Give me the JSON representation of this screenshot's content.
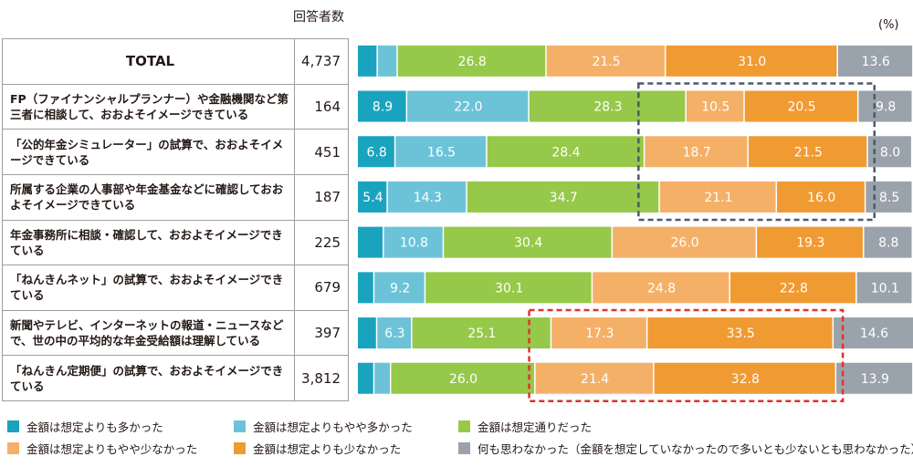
{
  "respondents_header": "回答者数",
  "unit_label": "(%)",
  "colors": [
    "#1aa3be",
    "#6cc3d8",
    "#96c84a",
    "#f5b068",
    "#f09a32",
    "#9aa3ab"
  ],
  "highlight_colors": {
    "blue": "#4a5a6e",
    "red": "#e0322c"
  },
  "chart_data": {
    "type": "stacked_bar_horizontal",
    "unit": "%",
    "xlim": [
      0,
      100
    ],
    "series": [
      {
        "name": "金額は想定よりも多かった"
      },
      {
        "name": "金額は想定よりもやや多かった"
      },
      {
        "name": "金額は想定通りだった"
      },
      {
        "name": "金額は想定よりもやや少なかった"
      },
      {
        "name": "金額は想定よりも少なかった"
      },
      {
        "name": "何も思わなかった（金額を想定していなかったので多いとも少ないとも思わなかった）"
      }
    ],
    "rows": [
      {
        "label": "TOTAL",
        "respondents": "4,737",
        "values": [
          3.6,
          3.6,
          26.8,
          21.5,
          31.0,
          13.6
        ],
        "labels": [
          "",
          "",
          "26.8",
          "21.5",
          "31.0",
          "13.6"
        ]
      },
      {
        "label": "FP（ファイナンシャルプランナー）や金融機関など第三者に相談して、おおよそイメージできている",
        "respondents": "164",
        "values": [
          8.9,
          22.0,
          28.3,
          10.5,
          20.5,
          9.8
        ],
        "labels": [
          "8.9",
          "22.0",
          "28.3",
          "10.5",
          "20.5",
          "9.8"
        ]
      },
      {
        "label": "「公的年金シミュレーター」の試算で、おおよそイメージできている",
        "respondents": "451",
        "values": [
          6.8,
          16.5,
          28.4,
          18.7,
          21.5,
          8.0
        ],
        "labels": [
          "6.8",
          "16.5",
          "28.4",
          "18.7",
          "21.5",
          "8.0"
        ]
      },
      {
        "label": "所属する企業の人事部や年金基金などに確認しておおよそイメージできている",
        "respondents": "187",
        "values": [
          5.4,
          14.3,
          34.7,
          21.1,
          16.0,
          8.5
        ],
        "labels": [
          "5.4",
          "14.3",
          "34.7",
          "21.1",
          "16.0",
          "8.5"
        ]
      },
      {
        "label": "年金事務所に相談・確認して、おおよそイメージできている",
        "respondents": "225",
        "values": [
          4.7,
          10.8,
          30.4,
          26.0,
          19.3,
          8.8
        ],
        "labels": [
          "",
          "10.8",
          "30.4",
          "26.0",
          "19.3",
          "8.8"
        ]
      },
      {
        "label": "「ねんきんネット」の試算で、おおよそイメージできている",
        "respondents": "679",
        "values": [
          3.0,
          9.2,
          30.1,
          24.8,
          22.8,
          10.1
        ],
        "labels": [
          "",
          "9.2",
          "30.1",
          "24.8",
          "22.8",
          "10.1"
        ]
      },
      {
        "label": "新聞やテレビ、インターネットの報道・ニュースなどで、世の中の平均的な年金受給額は理解している",
        "respondents": "397",
        "values": [
          3.5,
          6.3,
          25.1,
          17.3,
          33.5,
          14.6
        ],
        "labels": [
          "",
          "6.3",
          "25.1",
          "17.3",
          "33.5",
          "14.6"
        ]
      },
      {
        "label": "「ねんきん定期便」の試算で、おおよそイメージできている",
        "respondents": "3,812",
        "values": [
          3.0,
          3.0,
          26.0,
          21.4,
          32.8,
          13.9
        ],
        "labels": [
          "",
          "",
          "26.0",
          "21.4",
          "32.8",
          "13.9"
        ]
      }
    ],
    "highlights": [
      {
        "color": "blue",
        "rows": [
          1,
          2,
          3
        ],
        "series": [
          3,
          4
        ]
      },
      {
        "color": "red",
        "rows": [
          6,
          7
        ],
        "series": [
          3,
          4
        ]
      }
    ]
  }
}
